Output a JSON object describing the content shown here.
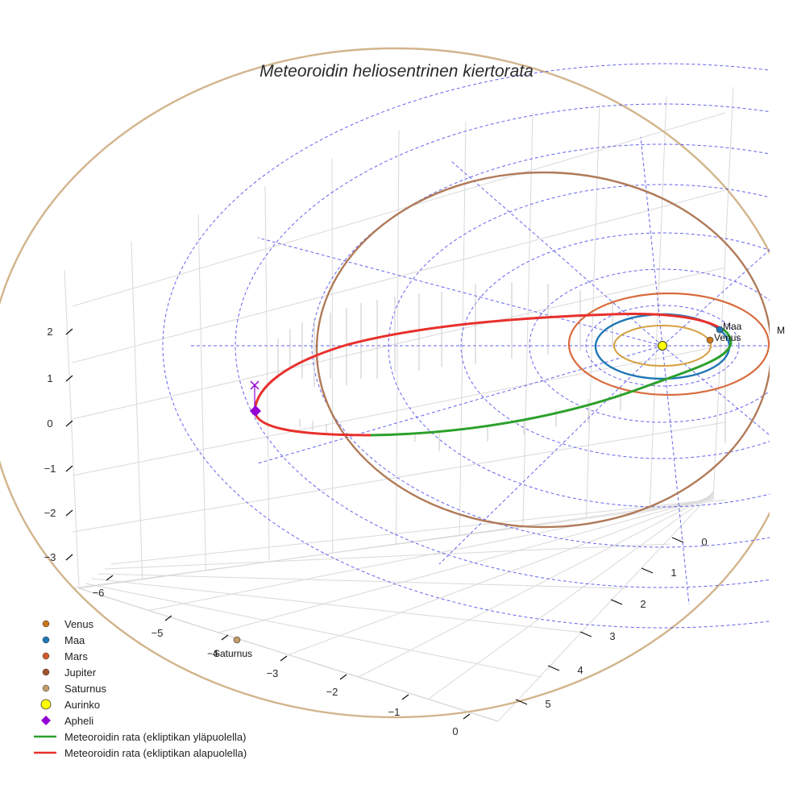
{
  "chart_data": {
    "type": "3d-orbit",
    "title": "Meteoroidin heliosentrinen kiertorata",
    "axes": {
      "x_ticks": [
        "−6",
        "−5",
        "−4",
        "−3",
        "−2",
        "−1",
        "0"
      ],
      "y_ticks": [
        "0",
        "1",
        "2",
        "3",
        "4",
        "5"
      ],
      "z_ticks": [
        "2",
        "1",
        "0",
        "−1",
        "−2",
        "−3"
      ]
    },
    "planets": [
      {
        "name": "Venus",
        "a_au": 0.72,
        "color": "#c9761c",
        "orbit_color": "#d4a040",
        "marker": "circle"
      },
      {
        "name": "Maa",
        "a_au": 1.0,
        "color": "#1f77b4",
        "orbit_color": "#1f77b4",
        "marker": "circle"
      },
      {
        "name": "Mars",
        "a_au": 1.52,
        "color": "#d15a2c",
        "orbit_color": "#d86b3c",
        "marker": "circle"
      },
      {
        "name": "Jupiter",
        "a_au": 5.2,
        "color": "#a0522d",
        "orbit_color": "#b07a58",
        "marker": "circle"
      },
      {
        "name": "Saturnus",
        "a_au": 9.54,
        "color": "#c29a6c",
        "orbit_color": "#d2b48c",
        "marker": "circle"
      }
    ],
    "sun": {
      "name": "Aurinko",
      "color": "#ffff00"
    },
    "aphelion": {
      "name": "Apheli",
      "color": "#9400d3"
    },
    "point_labels": [
      "Maa",
      "Venus",
      "M",
      "Saturnus",
      "−4"
    ],
    "orbit_segments": [
      {
        "name": "Meteoroidin rata (ekliptikan yläpuolella)",
        "color": "#2ca02c"
      },
      {
        "name": "Meteoroidin rata (ekliptikan alapuolella)",
        "color": "#e8302c"
      }
    ]
  },
  "legend": {
    "items": [
      {
        "label": "Venus",
        "color": "#c9761c",
        "marker": "circle"
      },
      {
        "label": "Maa",
        "color": "#1f77b4",
        "marker": "circle"
      },
      {
        "label": "Mars",
        "color": "#d15a2c",
        "marker": "circle"
      },
      {
        "label": "Jupiter",
        "color": "#a0522d",
        "marker": "circle"
      },
      {
        "label": "Saturnus",
        "color": "#c29a6c",
        "marker": "circle"
      },
      {
        "label": "Aurinko",
        "color": "#ffff00",
        "marker": "big-circle"
      },
      {
        "label": "Apheli",
        "color": "#9400d3",
        "marker": "diamond"
      },
      {
        "label": "Meteoroidin rata (ekliptikan yläpuolella)",
        "color": "#2ca02c",
        "marker": "line"
      },
      {
        "label": "Meteoroidin rata (ekliptikan alapuolella)",
        "color": "#e8302c",
        "marker": "line"
      }
    ]
  }
}
